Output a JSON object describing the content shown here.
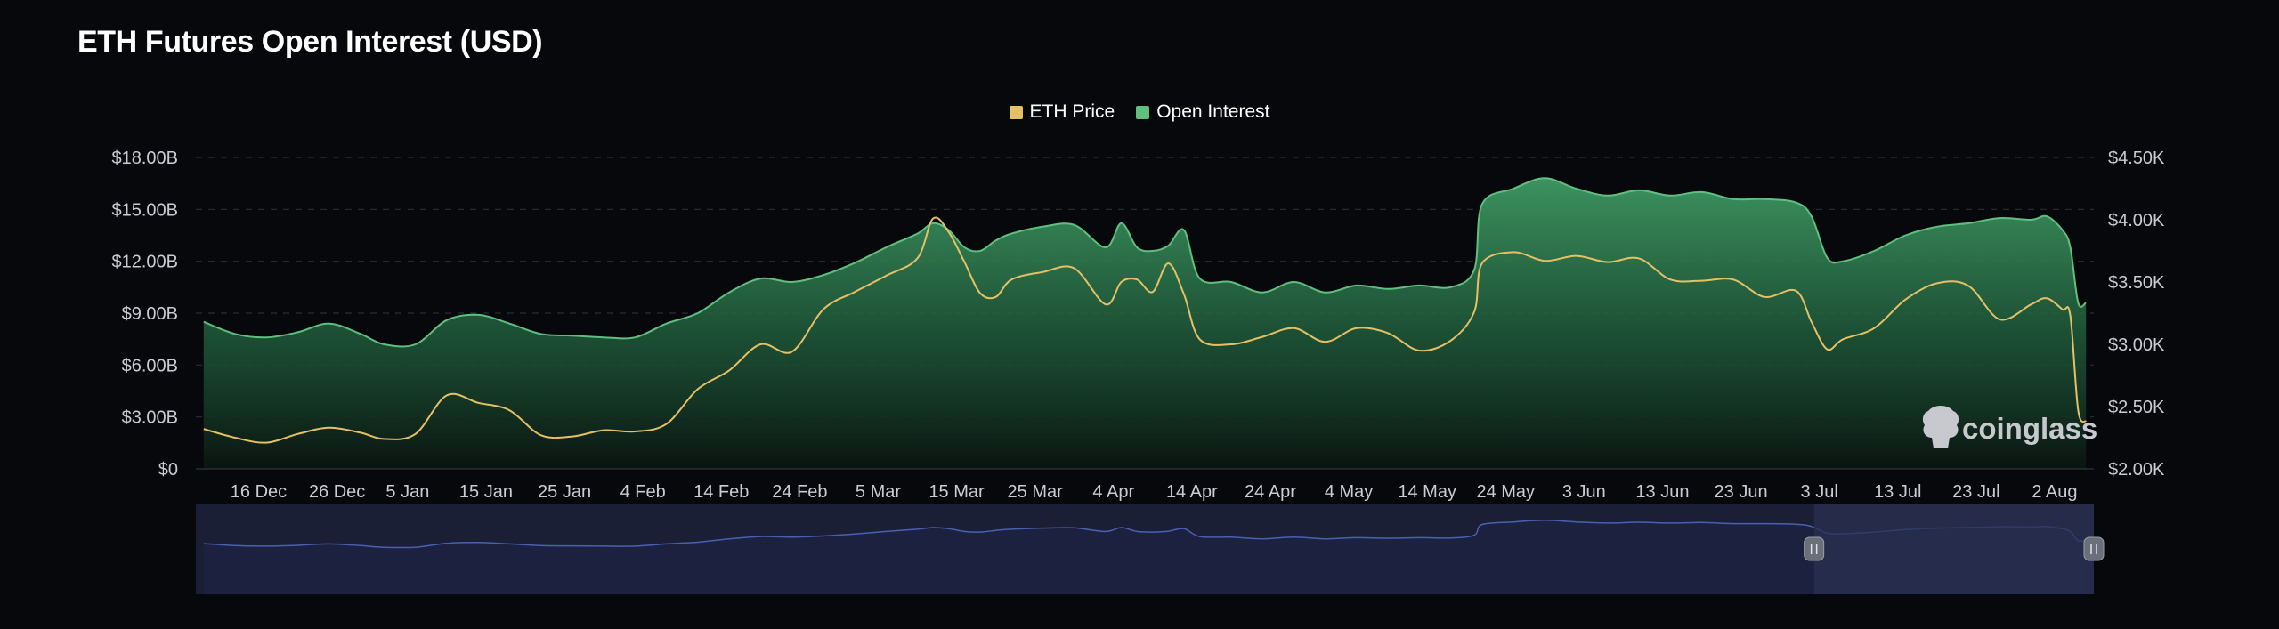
{
  "title": "ETH Futures Open Interest (USD)",
  "watermark": "coinglass",
  "colors": {
    "background": "#07080c",
    "price_line": "#e5c065",
    "oi_line": "#5fbf7f",
    "oi_fill_top": "#3f9a64",
    "oi_fill_bottom": "#0a1410",
    "grid": "#2a2d36",
    "navigator_fill": "#1a1f36",
    "navigator_line": "#4a5fb0",
    "navigator_selection": "#2a3050"
  },
  "legend": [
    {
      "label": "ETH Price",
      "color": "#e5c065"
    },
    {
      "label": "Open Interest",
      "color": "#5fbf7f"
    }
  ],
  "chart_data": {
    "type": "area",
    "title": "ETH Futures Open Interest (USD)",
    "x_ticks": [
      "16 Dec",
      "26 Dec",
      "5 Jan",
      "15 Jan",
      "25 Jan",
      "4 Feb",
      "14 Feb",
      "24 Feb",
      "5 Mar",
      "15 Mar",
      "25 Mar",
      "4 Apr",
      "14 Apr",
      "24 Apr",
      "4 May",
      "14 May",
      "24 May",
      "3 Jun",
      "13 Jun",
      "23 Jun",
      "3 Jul",
      "13 Jul",
      "23 Jul",
      "2 Aug"
    ],
    "y_left": {
      "ticks": [
        "$0",
        "$3.00B",
        "$6.00B",
        "$9.00B",
        "$12.00B",
        "$15.00B",
        "$18.00B"
      ],
      "range": [
        0,
        18
      ],
      "unit": "billion USD"
    },
    "y_right": {
      "ticks": [
        "$2.00K",
        "$2.50K",
        "$3.00K",
        "$3.50K",
        "$4.00K",
        "$4.50K"
      ],
      "range": [
        2000,
        4500
      ],
      "unit": "USD"
    },
    "grid": true,
    "legend_position": "top-center",
    "x_dates": [
      "9 Dec",
      "13 Dec",
      "17 Dec",
      "21 Dec",
      "25 Dec",
      "29 Dec",
      "2 Jan",
      "6 Jan",
      "10 Jan",
      "14 Jan",
      "18 Jan",
      "22 Jan",
      "26 Jan",
      "30 Jan",
      "3 Feb",
      "7 Feb",
      "11 Feb",
      "15 Feb",
      "19 Feb",
      "23 Feb",
      "27 Feb",
      "2 Mar",
      "6 Mar",
      "10 Mar",
      "12 Mar",
      "14 Mar",
      "16 Mar",
      "18 Mar",
      "20 Mar",
      "22 Mar",
      "26 Mar",
      "30 Mar",
      "3 Apr",
      "5 Apr",
      "7 Apr",
      "9 Apr",
      "11 Apr",
      "13 Apr",
      "15 Apr",
      "19 Apr",
      "23 Apr",
      "27 Apr",
      "1 May",
      "5 May",
      "9 May",
      "13 May",
      "17 May",
      "20 May",
      "21 May",
      "25 May",
      "29 May",
      "2 Jun",
      "6 Jun",
      "10 Jun",
      "14 Jun",
      "18 Jun",
      "22 Jun",
      "26 Jun",
      "30 Jun",
      "2 Jul",
      "4 Jul",
      "6 Jul",
      "10 Jul",
      "14 Jul",
      "18 Jul",
      "22 Jul",
      "26 Jul",
      "30 Jul",
      "1 Aug",
      "3 Aug",
      "4 Aug",
      "5 Aug",
      "6 Aug"
    ],
    "series": [
      {
        "name": "Open Interest",
        "axis": "left",
        "values": [
          8.5,
          7.8,
          7.6,
          7.9,
          8.4,
          7.8,
          7.2,
          7.2,
          8.6,
          8.9,
          8.4,
          7.8,
          7.7,
          7.6,
          7.6,
          8.4,
          9.0,
          10.2,
          11.0,
          10.8,
          11.2,
          11.9,
          12.8,
          13.6,
          14.2,
          13.8,
          12.8,
          12.6,
          13.2,
          13.6,
          14.0,
          14.1,
          12.8,
          14.2,
          12.8,
          12.6,
          12.9,
          13.8,
          11.0,
          10.8,
          10.2,
          10.8,
          10.2,
          10.6,
          10.4,
          10.6,
          10.5,
          11.5,
          15.3,
          16.2,
          16.8,
          16.2,
          15.8,
          16.1,
          15.8,
          16.0,
          15.6,
          15.6,
          15.4,
          14.6,
          12.2,
          12.0,
          12.6,
          13.5,
          14.0,
          14.2,
          14.5,
          14.4,
          14.6,
          13.8,
          12.8,
          9.6,
          9.6
        ]
      },
      {
        "name": "ETH Price",
        "axis": "right",
        "values": [
          2320,
          2250,
          2210,
          2280,
          2330,
          2290,
          2240,
          2280,
          2590,
          2530,
          2470,
          2270,
          2260,
          2310,
          2300,
          2360,
          2640,
          2790,
          3000,
          2940,
          3280,
          3420,
          3550,
          3690,
          4010,
          3900,
          3660,
          3410,
          3380,
          3520,
          3580,
          3610,
          3320,
          3500,
          3520,
          3420,
          3650,
          3400,
          3040,
          3000,
          3060,
          3130,
          3020,
          3130,
          3090,
          2950,
          3030,
          3260,
          3650,
          3740,
          3670,
          3710,
          3660,
          3690,
          3520,
          3510,
          3520,
          3380,
          3430,
          3180,
          2960,
          3040,
          3130,
          3360,
          3490,
          3470,
          3200,
          3320,
          3370,
          3280,
          3230,
          2470,
          2380
        ]
      }
    ]
  }
}
